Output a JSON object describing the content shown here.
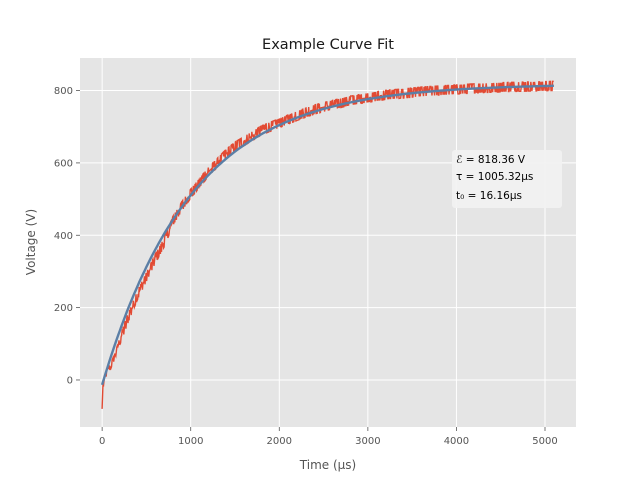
{
  "chart_data": {
    "type": "line",
    "title": "Example Curve Fit",
    "xlabel": "Time (μs)",
    "ylabel": "Voltage (V)",
    "xlim": [
      -250,
      5350
    ],
    "ylim": [
      -130,
      890
    ],
    "xticks": [
      0,
      1000,
      2000,
      3000,
      4000,
      5000
    ],
    "xtick_labels": [
      "0",
      "1000",
      "2000",
      "3000",
      "4000",
      "5000"
    ],
    "yticks": [
      0,
      200,
      400,
      600,
      800
    ],
    "ytick_labels": [
      "0",
      "200",
      "400",
      "600",
      "800"
    ],
    "grid": true,
    "style": "ggplot",
    "series": [
      {
        "role": "measured",
        "color": "#E24A33",
        "points": [
          [
            0,
            -80
          ],
          [
            10,
            -10
          ],
          [
            50,
            20
          ],
          [
            100,
            40
          ],
          [
            150,
            70
          ],
          [
            200,
            110
          ],
          [
            300,
            175
          ],
          [
            400,
            235
          ],
          [
            500,
            285
          ],
          [
            600,
            335
          ],
          [
            700,
            380
          ],
          [
            800,
            440
          ],
          [
            900,
            480
          ],
          [
            1000,
            515
          ],
          [
            1100,
            545
          ],
          [
            1200,
            575
          ],
          [
            1300,
            600
          ],
          [
            1400,
            625
          ],
          [
            1500,
            645
          ],
          [
            1600,
            660
          ],
          [
            1700,
            675
          ],
          [
            1800,
            690
          ],
          [
            1900,
            700
          ],
          [
            2000,
            710
          ],
          [
            2200,
            730
          ],
          [
            2400,
            748
          ],
          [
            2600,
            760
          ],
          [
            2800,
            772
          ],
          [
            3000,
            780
          ],
          [
            3200,
            788
          ],
          [
            3400,
            792
          ],
          [
            3600,
            797
          ],
          [
            3800,
            800
          ],
          [
            4000,
            803
          ],
          [
            4200,
            806
          ],
          [
            4400,
            808
          ],
          [
            4600,
            810
          ],
          [
            4800,
            811
          ],
          [
            5000,
            812
          ],
          [
            5100,
            813
          ]
        ],
        "noise_band_V": 18
      },
      {
        "role": "fit",
        "color": "#5B7FA6",
        "model": "E*(1-exp(-(t-t0)/tau))",
        "params": {
          "E": 818.36,
          "tau": 1005.32,
          "t0": 16.16
        },
        "x_range": [
          0,
          5100
        ]
      }
    ],
    "annotation": {
      "lines": [
        "ℰ = 818.36 V",
        "τ = 1005.32μs",
        "t₀ = 16.16μs"
      ],
      "placement": "right, middle"
    }
  }
}
